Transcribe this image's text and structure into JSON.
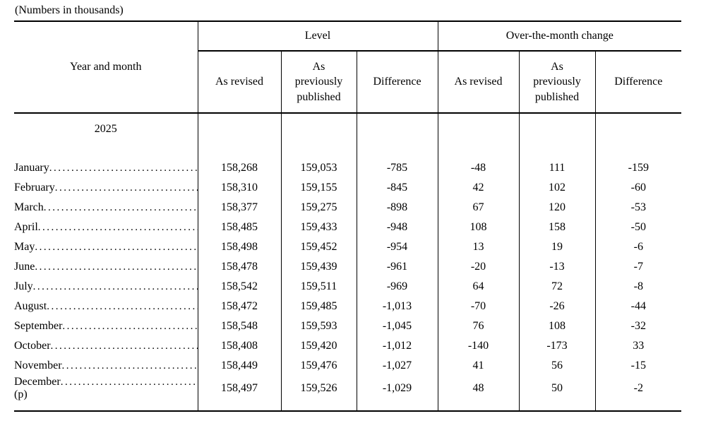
{
  "note": "(Numbers in thousands)",
  "table": {
    "corner_header": "Year and month",
    "groups": [
      {
        "label": "Level"
      },
      {
        "label": "Over-the-month change"
      }
    ],
    "sub_headers": [
      "As revised",
      "As previously published",
      "Difference",
      "As revised",
      "As previously published",
      "Difference"
    ],
    "year_label": "2025",
    "rows": [
      {
        "month": "January",
        "values": [
          "158,268",
          "159,053",
          "-785",
          "-48",
          "111",
          "-159"
        ]
      },
      {
        "month": "February",
        "values": [
          "158,310",
          "159,155",
          "-845",
          "42",
          "102",
          "-60"
        ]
      },
      {
        "month": "March",
        "values": [
          "158,377",
          "159,275",
          "-898",
          "67",
          "120",
          "-53"
        ]
      },
      {
        "month": "April",
        "values": [
          "158,485",
          "159,433",
          "-948",
          "108",
          "158",
          "-50"
        ]
      },
      {
        "month": "May",
        "values": [
          "158,498",
          "159,452",
          "-954",
          "13",
          "19",
          "-6"
        ]
      },
      {
        "month": "June",
        "values": [
          "158,478",
          "159,439",
          "-961",
          "-20",
          "-13",
          "-7"
        ]
      },
      {
        "month": "July",
        "values": [
          "158,542",
          "159,511",
          "-969",
          "64",
          "72",
          "-8"
        ]
      },
      {
        "month": "August",
        "values": [
          "158,472",
          "159,485",
          "-1,013",
          "-70",
          "-26",
          "-44"
        ]
      },
      {
        "month": "September",
        "values": [
          "158,548",
          "159,593",
          "-1,045",
          "76",
          "108",
          "-32"
        ]
      },
      {
        "month": "October",
        "values": [
          "158,408",
          "159,420",
          "-1,012",
          "-140",
          "-173",
          "33"
        ]
      },
      {
        "month": "November",
        "values": [
          "158,449",
          "159,476",
          "-1,027",
          "41",
          "56",
          "-15"
        ]
      },
      {
        "month": "December (p)",
        "values": [
          "158,497",
          "159,526",
          "-1,029",
          "48",
          "50",
          "-2"
        ]
      }
    ]
  },
  "colors": {
    "text": "#000000",
    "background": "#ffffff",
    "rule": "#000000"
  }
}
